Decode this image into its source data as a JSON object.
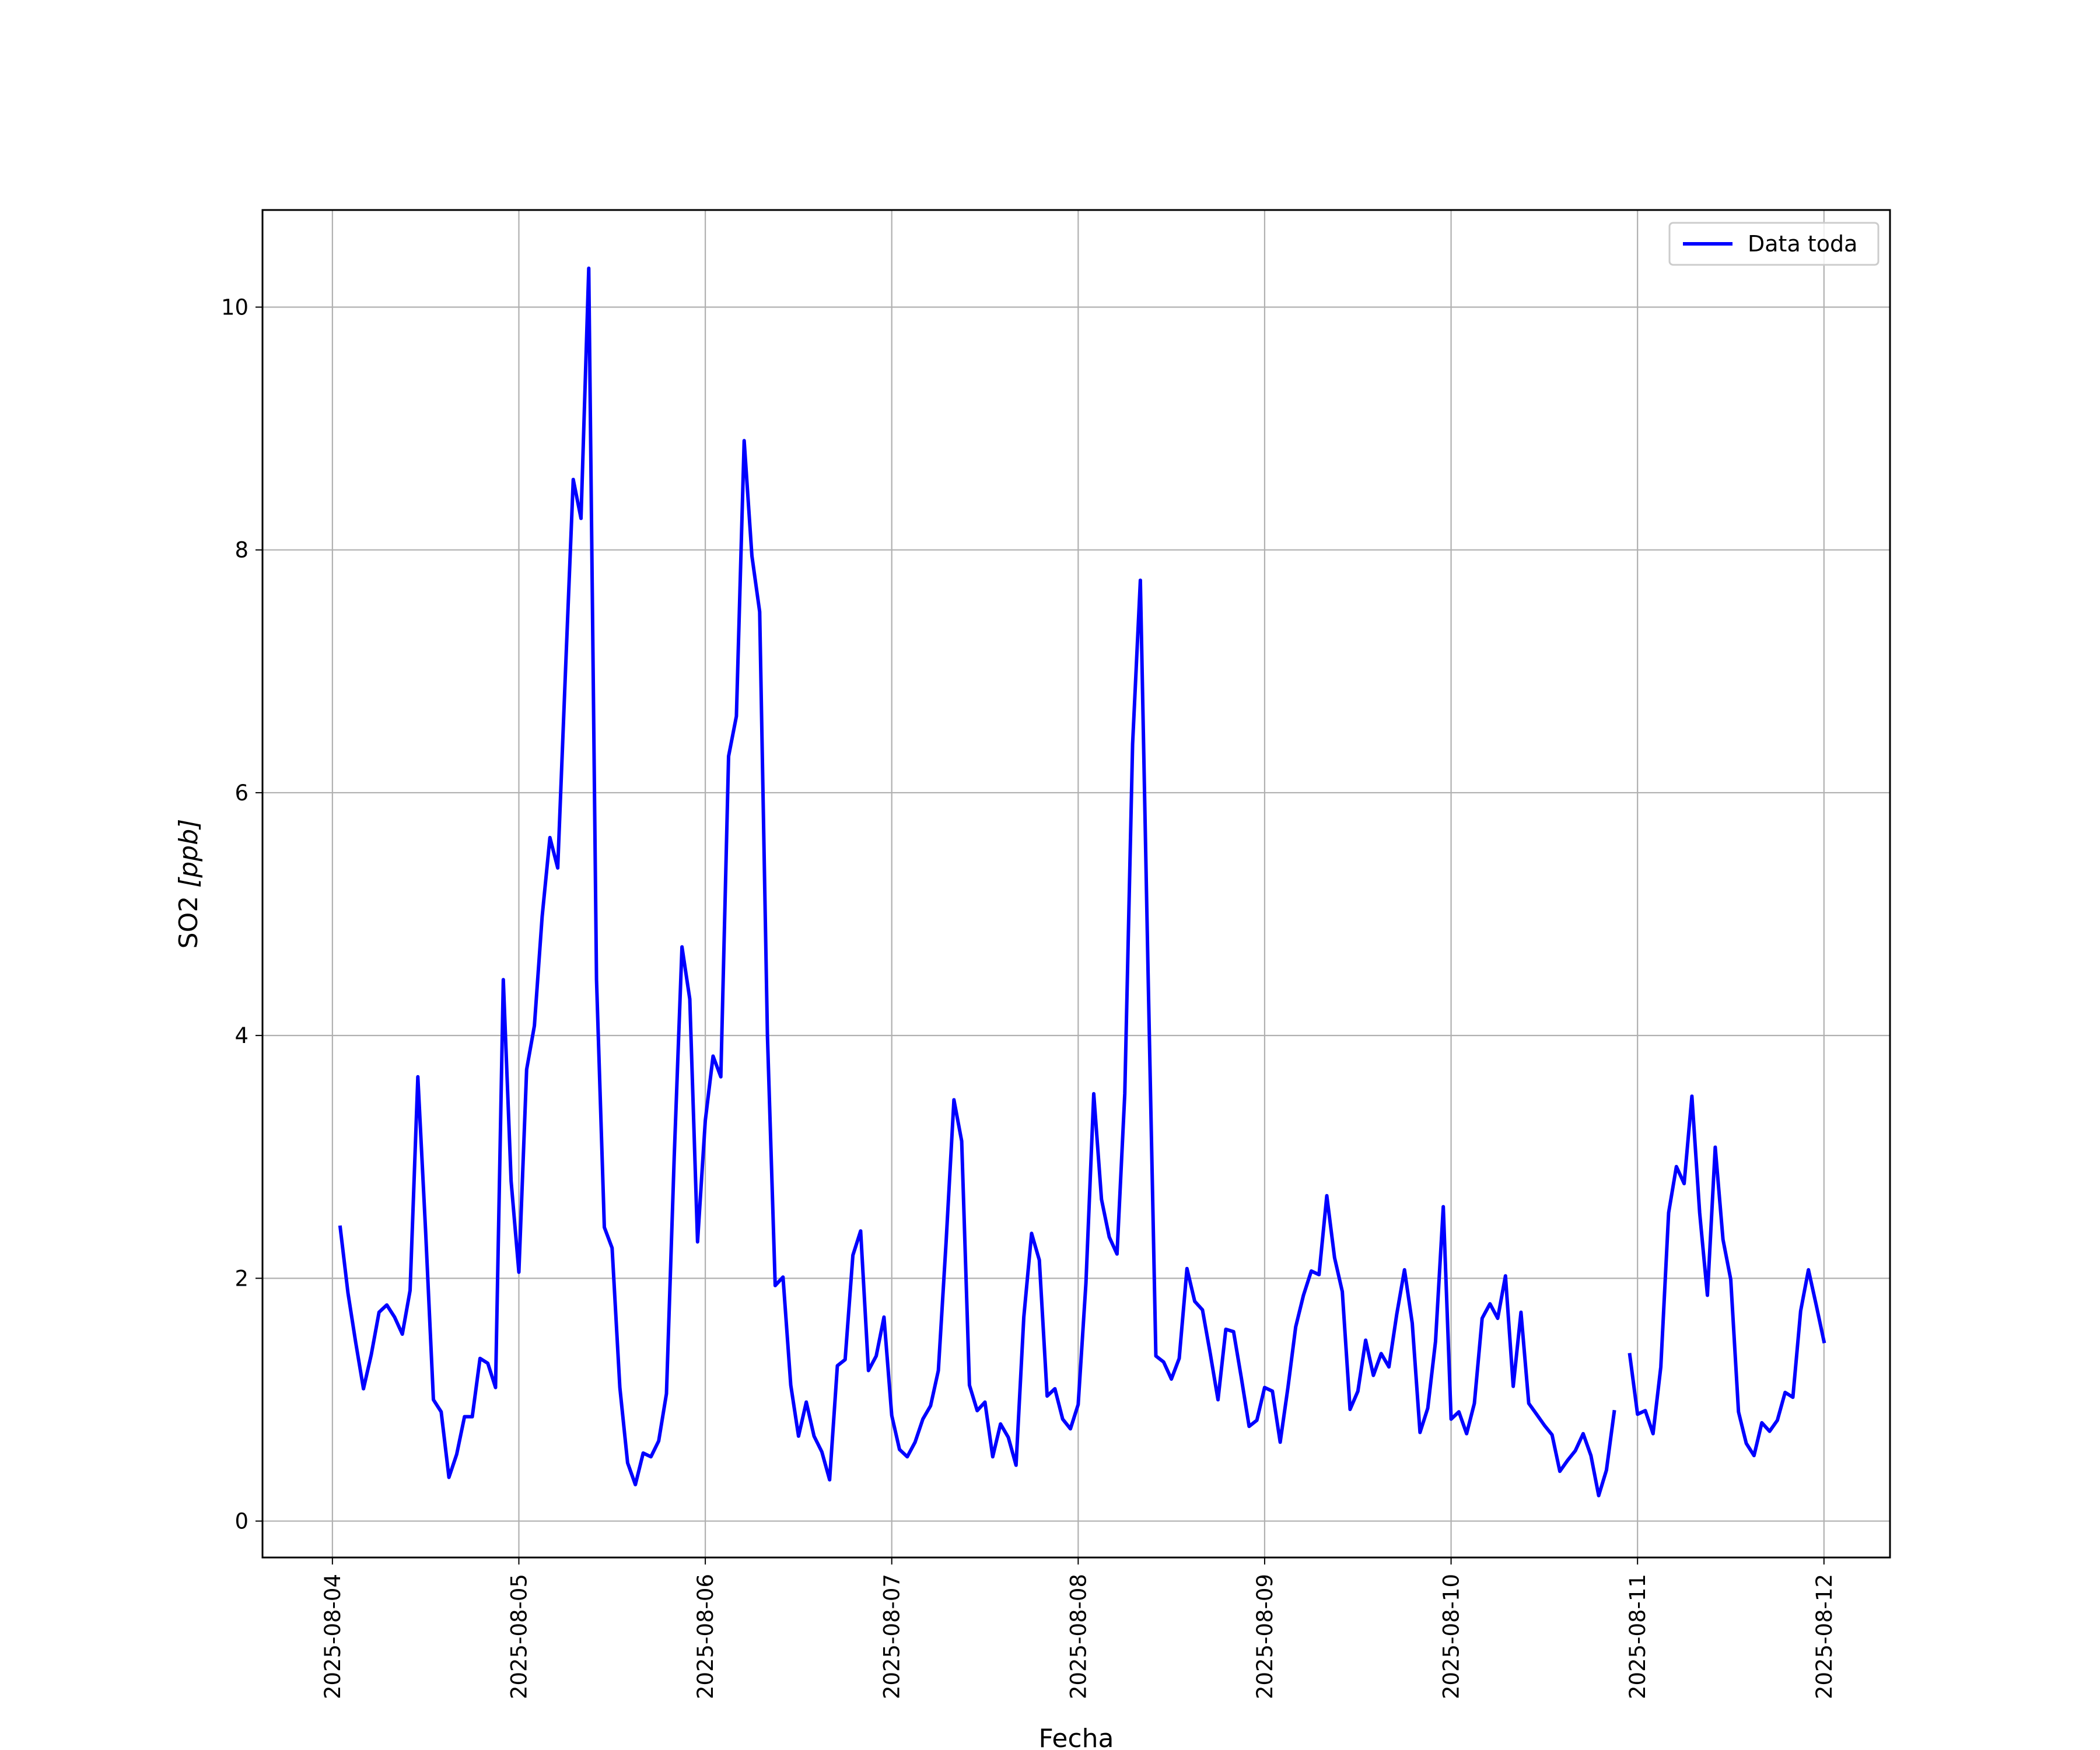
{
  "chart_data": {
    "type": "line",
    "xlabel": "Fecha",
    "ylabel": "SO2 [ppb]",
    "ylabel_main": "SO2 ",
    "ylabel_unit": "[ppb]",
    "ylim": [
      -0.3,
      10.8
    ],
    "yticks": [
      0,
      2,
      4,
      6,
      8,
      10
    ],
    "xrange": [
      "2025-08-03T15:00",
      "2025-08-12T08:30"
    ],
    "xticks": [
      "2025-08-04",
      "2025-08-05",
      "2025-08-06",
      "2025-08-07",
      "2025-08-08",
      "2025-08-09",
      "2025-08-10",
      "2025-08-11",
      "2025-08-12"
    ],
    "grid": true,
    "legend_position": "top-right",
    "series": [
      {
        "name": "Data toda",
        "color": "#0000ff",
        "x": [
          "2025-08-04T01:00",
          "2025-08-04T02:00",
          "2025-08-04T03:00",
          "2025-08-04T04:00",
          "2025-08-04T05:00",
          "2025-08-04T06:00",
          "2025-08-04T07:00",
          "2025-08-04T08:00",
          "2025-08-04T09:00",
          "2025-08-04T10:00",
          "2025-08-04T11:00",
          "2025-08-04T12:00",
          "2025-08-04T13:00",
          "2025-08-04T14:00",
          "2025-08-04T15:00",
          "2025-08-04T16:00",
          "2025-08-04T17:00",
          "2025-08-04T18:00",
          "2025-08-04T19:00",
          "2025-08-04T20:00",
          "2025-08-04T21:00",
          "2025-08-04T22:00",
          "2025-08-04T23:00",
          "2025-08-05T00:00",
          "2025-08-05T01:00",
          "2025-08-05T02:00",
          "2025-08-05T03:00",
          "2025-08-05T04:00",
          "2025-08-05T05:00",
          "2025-08-05T06:00",
          "2025-08-05T07:00",
          "2025-08-05T08:00",
          "2025-08-05T09:00",
          "2025-08-05T10:00",
          "2025-08-05T11:00",
          "2025-08-05T12:00",
          "2025-08-05T13:00",
          "2025-08-05T14:00",
          "2025-08-05T15:00",
          "2025-08-05T16:00",
          "2025-08-05T17:00",
          "2025-08-05T18:00",
          "2025-08-05T19:00",
          "2025-08-05T20:00",
          "2025-08-05T21:00",
          "2025-08-05T22:00",
          "2025-08-05T23:00",
          "2025-08-06T00:00",
          "2025-08-06T01:00",
          "2025-08-06T02:00",
          "2025-08-06T03:00",
          "2025-08-06T04:00",
          "2025-08-06T05:00",
          "2025-08-06T06:00",
          "2025-08-06T07:00",
          "2025-08-06T08:00",
          "2025-08-06T09:00",
          "2025-08-06T10:00",
          "2025-08-06T11:00",
          "2025-08-06T12:00",
          "2025-08-06T13:00",
          "2025-08-06T14:00",
          "2025-08-06T15:00",
          "2025-08-06T16:00",
          "2025-08-06T17:00",
          "2025-08-06T18:00",
          "2025-08-06T19:00",
          "2025-08-06T20:00",
          "2025-08-06T21:00",
          "2025-08-06T22:00",
          "2025-08-06T23:00",
          "2025-08-07T00:00",
          "2025-08-07T01:00",
          "2025-08-07T02:00",
          "2025-08-07T03:00",
          "2025-08-07T04:00",
          "2025-08-07T05:00",
          "2025-08-07T06:00",
          "2025-08-07T07:00",
          "2025-08-07T08:00",
          "2025-08-07T09:00",
          "2025-08-07T10:00",
          "2025-08-07T11:00",
          "2025-08-07T12:00",
          "2025-08-07T13:00",
          "2025-08-07T14:00",
          "2025-08-07T15:00",
          "2025-08-07T16:00",
          "2025-08-07T17:00",
          "2025-08-07T18:00",
          "2025-08-07T19:00",
          "2025-08-07T20:00",
          "2025-08-07T21:00",
          "2025-08-07T22:00",
          "2025-08-07T23:00",
          "2025-08-08T00:00",
          "2025-08-08T01:00",
          "2025-08-08T02:00",
          "2025-08-08T03:00",
          "2025-08-08T04:00",
          "2025-08-08T05:00",
          "2025-08-08T06:00",
          "2025-08-08T07:00",
          "2025-08-08T08:00",
          "2025-08-08T09:00",
          "2025-08-08T10:00",
          "2025-08-08T11:00",
          "2025-08-08T12:00",
          "2025-08-08T13:00",
          "2025-08-08T14:00",
          "2025-08-08T15:00",
          "2025-08-08T16:00",
          "2025-08-08T17:00",
          "2025-08-08T18:00",
          "2025-08-08T19:00",
          "2025-08-08T20:00",
          "2025-08-08T21:00",
          "2025-08-08T22:00",
          "2025-08-08T23:00",
          "2025-08-09T00:00",
          "2025-08-09T01:00",
          "2025-08-09T02:00",
          "2025-08-09T03:00",
          "2025-08-09T04:00",
          "2025-08-09T05:00",
          "2025-08-09T06:00",
          "2025-08-09T07:00",
          "2025-08-09T08:00",
          "2025-08-09T09:00",
          "2025-08-09T10:00",
          "2025-08-09T11:00",
          "2025-08-09T12:00",
          "2025-08-09T13:00",
          "2025-08-09T14:00",
          "2025-08-09T15:00",
          "2025-08-09T16:00",
          "2025-08-09T17:00",
          "2025-08-09T18:00",
          "2025-08-09T19:00",
          "2025-08-09T20:00",
          "2025-08-09T21:00",
          "2025-08-09T22:00",
          "2025-08-09T23:00",
          "2025-08-10T00:00",
          "2025-08-10T01:00",
          "2025-08-10T02:00",
          "2025-08-10T03:00",
          "2025-08-10T04:00",
          "2025-08-10T05:00",
          "2025-08-10T06:00",
          "2025-08-10T07:00",
          "2025-08-10T08:00",
          "2025-08-10T09:00",
          "2025-08-10T10:00",
          "2025-08-10T11:00",
          "2025-08-10T12:00",
          "2025-08-10T13:00",
          "2025-08-10T14:00",
          "2025-08-10T15:00",
          "2025-08-10T16:00",
          "2025-08-10T17:00",
          "2025-08-10T18:00",
          "2025-08-10T19:00",
          "2025-08-10T20:00",
          "2025-08-10T21:00",
          "2025-08-10T22:00",
          "2025-08-10T23:00",
          "2025-08-11T00:00",
          "2025-08-11T01:00",
          "2025-08-11T02:00",
          "2025-08-11T03:00",
          "2025-08-11T04:00",
          "2025-08-11T05:00",
          "2025-08-11T06:00",
          "2025-08-11T07:00",
          "2025-08-11T08:00",
          "2025-08-11T09:00",
          "2025-08-11T10:00",
          "2025-08-11T11:00",
          "2025-08-11T12:00",
          "2025-08-11T13:00",
          "2025-08-11T14:00",
          "2025-08-11T15:00",
          "2025-08-11T16:00",
          "2025-08-11T17:00",
          "2025-08-11T18:00",
          "2025-08-11T19:00",
          "2025-08-11T20:00",
          "2025-08-11T21:00",
          "2025-08-11T22:00",
          "2025-08-11T23:00",
          "2025-08-12T00:00"
        ],
        "values": [
          2.42,
          1.88,
          1.47,
          1.09,
          1.37,
          1.72,
          1.78,
          1.68,
          1.54,
          1.9,
          3.66,
          2.38,
          1.0,
          0.9,
          0.36,
          0.55,
          0.86,
          0.86,
          1.34,
          1.3,
          1.1,
          4.46,
          2.8,
          2.05,
          3.72,
          4.08,
          4.98,
          5.63,
          5.38,
          7.0,
          8.58,
          8.26,
          10.32,
          4.46,
          2.42,
          2.25,
          1.1,
          0.48,
          0.3,
          0.56,
          0.53,
          0.66,
          1.05,
          3.0,
          4.73,
          4.3,
          2.3,
          3.3,
          3.83,
          3.66,
          6.3,
          6.63,
          8.9,
          7.95,
          7.49,
          4.0,
          1.94,
          2.01,
          1.12,
          0.7,
          0.98,
          0.7,
          0.57,
          0.34,
          1.28,
          1.33,
          2.19,
          2.39,
          1.24,
          1.36,
          1.68,
          0.87,
          0.59,
          0.53,
          0.65,
          0.84,
          0.95,
          1.24,
          2.3,
          3.47,
          3.13,
          1.12,
          0.91,
          0.98,
          0.53,
          0.8,
          0.69,
          0.46,
          1.68,
          2.37,
          2.15,
          1.03,
          1.09,
          0.84,
          0.76,
          0.96,
          1.96,
          3.52,
          2.65,
          2.34,
          2.2,
          3.52,
          6.4,
          7.75,
          4.5,
          1.36,
          1.31,
          1.17,
          1.34,
          2.08,
          1.81,
          1.74,
          1.38,
          1.0,
          1.58,
          1.56,
          1.18,
          0.78,
          0.83,
          1.1,
          1.07,
          0.65,
          1.1,
          1.6,
          1.86,
          2.06,
          2.03,
          2.68,
          2.17,
          1.89,
          0.92,
          1.07,
          1.49,
          1.2,
          1.38,
          1.27,
          1.7,
          2.07,
          1.63,
          0.73,
          0.93,
          1.48,
          2.59,
          0.84,
          0.9,
          0.72,
          0.97,
          1.67,
          1.79,
          1.67,
          2.02,
          1.11,
          1.72,
          0.97,
          0.88,
          0.79,
          0.71,
          0.41,
          0.5,
          0.58,
          0.72,
          0.54,
          0.21,
          0.42,
          0.9,
          null,
          1.37,
          0.88,
          0.91,
          0.72,
          1.27,
          2.54,
          2.92,
          2.78,
          3.5,
          2.54,
          1.86,
          3.08,
          2.32,
          1.99,
          0.9,
          0.64,
          0.54,
          0.81,
          0.74,
          0.83,
          1.06,
          1.02,
          1.73,
          2.07,
          1.78,
          1.48
        ]
      }
    ]
  }
}
